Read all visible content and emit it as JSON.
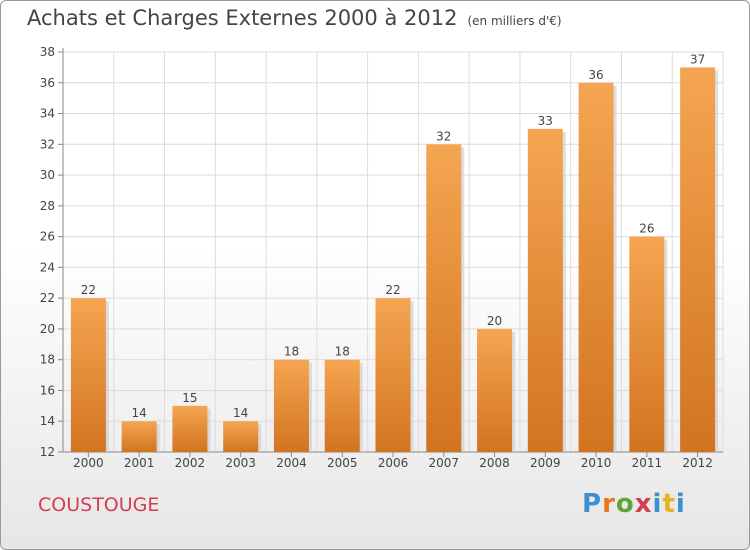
{
  "header": {
    "title": "Achats et Charges Externes 2000 à 2012",
    "unit": "(en milliers d'€)"
  },
  "footer": {
    "commune": "COUSTOUGE",
    "logo": "Proxiti"
  },
  "colors": {
    "bar_top": "#f5a552",
    "bar_bottom": "#d2741f",
    "commune": "#d63c52"
  },
  "chart_data": {
    "type": "bar",
    "categories": [
      "2000",
      "2001",
      "2002",
      "2003",
      "2004",
      "2005",
      "2006",
      "2007",
      "2008",
      "2009",
      "2010",
      "2011",
      "2012"
    ],
    "values": [
      22,
      14,
      15,
      14,
      18,
      18,
      22,
      32,
      20,
      33,
      36,
      26,
      37
    ],
    "ylim": [
      12,
      38
    ],
    "yticks": [
      12,
      14,
      16,
      18,
      20,
      22,
      24,
      26,
      28,
      30,
      32,
      34,
      36,
      38
    ],
    "grid": true,
    "legend": "none"
  }
}
